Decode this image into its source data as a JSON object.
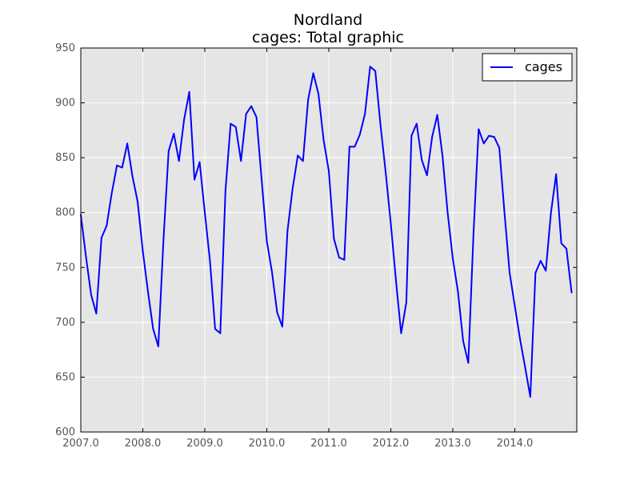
{
  "chart_data": {
    "type": "line",
    "title": "Nordland",
    "subtitle": "cages: Total graphic",
    "xlabel": "",
    "ylabel": "",
    "xlim": [
      2007.0,
      2015.0
    ],
    "ylim": [
      600,
      950
    ],
    "grid": true,
    "legend_position": "top-right",
    "x_ticks": [
      2007.0,
      2008.0,
      2009.0,
      2010.0,
      2011.0,
      2012.0,
      2013.0,
      2014.0
    ],
    "x_tick_labels": [
      "2007.0",
      "2008.0",
      "2009.0",
      "2010.0",
      "2011.0",
      "2012.0",
      "2013.0",
      "2014.0"
    ],
    "y_ticks": [
      600,
      650,
      700,
      750,
      800,
      850,
      900,
      950
    ],
    "y_tick_labels": [
      "600",
      "650",
      "700",
      "750",
      "800",
      "850",
      "900",
      "950"
    ],
    "series": [
      {
        "name": "cages",
        "color": "#0000ff",
        "x": [
          2007.0,
          2007.0833,
          2007.1667,
          2007.25,
          2007.3333,
          2007.4167,
          2007.5,
          2007.5833,
          2007.6667,
          2007.75,
          2007.8333,
          2007.9167,
          2008.0,
          2008.0833,
          2008.1667,
          2008.25,
          2008.3333,
          2008.4167,
          2008.5,
          2008.5833,
          2008.6667,
          2008.75,
          2008.8333,
          2008.9167,
          2009.0,
          2009.0833,
          2009.1667,
          2009.25,
          2009.3333,
          2009.4167,
          2009.5,
          2009.5833,
          2009.6667,
          2009.75,
          2009.8333,
          2009.9167,
          2010.0,
          2010.0833,
          2010.1667,
          2010.25,
          2010.3333,
          2010.4167,
          2010.5,
          2010.5833,
          2010.6667,
          2010.75,
          2010.8333,
          2010.9167,
          2011.0,
          2011.0833,
          2011.1667,
          2011.25,
          2011.3333,
          2011.4167,
          2011.5,
          2011.5833,
          2011.6667,
          2011.75,
          2011.8333,
          2011.9167,
          2012.0,
          2012.0833,
          2012.1667,
          2012.25,
          2012.3333,
          2012.4167,
          2012.5,
          2012.5833,
          2012.6667,
          2012.75,
          2012.8333,
          2012.9167,
          2013.0,
          2013.0833,
          2013.1667,
          2013.25,
          2013.3333,
          2013.4167,
          2013.5,
          2013.5833,
          2013.6667,
          2013.75,
          2013.8333,
          2013.9167,
          2014.0,
          2014.0833,
          2014.1667,
          2014.25,
          2014.3333,
          2014.4167,
          2014.5,
          2014.5833,
          2014.6667,
          2014.75,
          2014.8333,
          2014.9167
        ],
        "y": [
          798,
          760,
          725,
          708,
          777,
          788,
          818,
          843,
          841,
          863,
          833,
          810,
          765,
          728,
          694,
          678,
          775,
          856,
          872,
          847,
          885,
          910,
          830,
          846,
          800,
          756,
          694,
          690,
          820,
          881,
          878,
          847,
          890,
          897,
          887,
          830,
          774,
          746,
          709,
          696,
          783,
          822,
          852,
          847,
          903,
          927,
          908,
          866,
          838,
          776,
          759,
          757,
          860,
          860,
          871,
          890,
          933,
          929,
          880,
          837,
          790,
          738,
          690,
          718,
          870,
          881,
          848,
          834,
          869,
          889,
          852,
          800,
          758,
          728,
          683,
          663,
          780,
          876,
          863,
          870,
          869,
          859,
          800,
          745,
          715,
          685,
          659,
          632,
          745,
          756,
          747,
          800,
          835,
          772,
          767,
          727
        ]
      }
    ]
  }
}
